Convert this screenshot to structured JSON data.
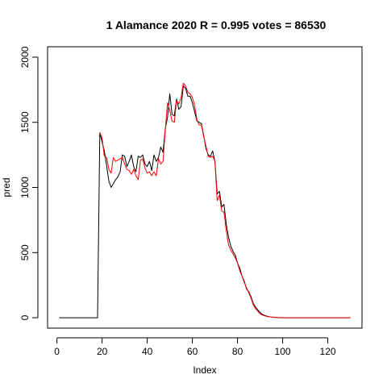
{
  "chart_data": {
    "type": "line",
    "title": "1 Alamance 2020 R = 0.995 votes = 86530",
    "xlabel": "Index",
    "ylabel": "pred",
    "xlim": [
      0,
      130
    ],
    "ylim": [
      0,
      2000
    ],
    "x_ticks": [
      0,
      20,
      40,
      60,
      80,
      100,
      120
    ],
    "y_ticks": [
      0,
      500,
      1000,
      1500,
      2000
    ],
    "x_tick_labels": [
      "0",
      "20",
      "40",
      "60",
      "80",
      "100",
      "120"
    ],
    "y_tick_labels": [
      "0",
      "500",
      "1000",
      "1500",
      "2000"
    ],
    "series": [
      {
        "color": "#000000",
        "x": [
          1,
          2,
          3,
          4,
          5,
          6,
          7,
          8,
          9,
          10,
          11,
          12,
          13,
          14,
          15,
          16,
          17,
          18,
          19,
          20,
          21,
          22,
          23,
          24,
          25,
          26,
          27,
          28,
          29,
          30,
          31,
          32,
          33,
          34,
          35,
          36,
          37,
          38,
          39,
          40,
          41,
          42,
          43,
          44,
          45,
          46,
          47,
          48,
          49,
          50,
          51,
          52,
          53,
          54,
          55,
          56,
          57,
          58,
          59,
          60,
          61,
          62,
          63,
          64,
          65,
          66,
          67,
          68,
          69,
          70,
          71,
          72,
          73,
          74,
          75,
          76,
          77,
          78,
          79,
          80,
          81,
          82,
          83,
          84,
          85,
          86,
          87,
          88,
          89,
          90,
          91,
          92,
          93,
          94,
          95,
          96,
          97,
          98,
          99,
          100,
          101,
          102,
          103,
          104,
          105,
          106,
          107,
          108,
          109,
          110,
          111,
          112,
          113,
          114,
          115,
          116,
          117,
          118,
          119,
          120,
          121,
          122,
          123,
          124,
          125,
          126,
          127,
          128,
          129,
          130
        ],
        "values": [
          0,
          0,
          0,
          0,
          0,
          0,
          0,
          0,
          0,
          0,
          0,
          0,
          0,
          0,
          0,
          0,
          0,
          0,
          1420,
          1350,
          1280,
          1170,
          1050,
          1000,
          1030,
          1060,
          1080,
          1120,
          1250,
          1240,
          1160,
          1200,
          1250,
          1160,
          1120,
          1240,
          1230,
          1250,
          1180,
          1160,
          1200,
          1130,
          1250,
          1200,
          1230,
          1310,
          1270,
          1450,
          1540,
          1720,
          1560,
          1550,
          1680,
          1600,
          1620,
          1780,
          1760,
          1700,
          1700,
          1650,
          1580,
          1510,
          1500,
          1490,
          1400,
          1300,
          1250,
          1240,
          1280,
          1200,
          950,
          970,
          850,
          870,
          720,
          620,
          550,
          510,
          480,
          420,
          380,
          320,
          280,
          220,
          200,
          160,
          110,
          80,
          60,
          40,
          25,
          18,
          12,
          8,
          5,
          3,
          2,
          1,
          0,
          0,
          0,
          0,
          0,
          0,
          0,
          0,
          0,
          0,
          0,
          0,
          0,
          0,
          0,
          0,
          0,
          0,
          0,
          0,
          0,
          0,
          0,
          0,
          0,
          0,
          0,
          0,
          0,
          0,
          0,
          0
        ]
      },
      {
        "color": "#ff0000",
        "x": [
          19,
          20,
          21,
          22,
          23,
          24,
          25,
          26,
          27,
          28,
          29,
          30,
          31,
          32,
          33,
          34,
          35,
          36,
          37,
          38,
          39,
          40,
          41,
          42,
          43,
          44,
          45,
          46,
          47,
          48,
          49,
          50,
          51,
          52,
          53,
          54,
          55,
          56,
          57,
          58,
          59,
          60,
          61,
          62,
          63,
          64,
          65,
          66,
          67,
          68,
          69,
          70,
          71,
          72,
          73,
          74,
          75,
          76,
          77,
          78,
          79,
          80,
          81,
          82,
          83,
          84,
          85,
          86,
          87,
          88,
          89,
          90,
          91,
          92,
          93,
          94,
          95,
          96,
          97,
          98,
          99,
          100,
          101,
          102,
          103,
          104,
          105,
          106,
          107,
          108,
          109,
          110,
          111,
          112,
          113,
          114,
          115,
          116,
          117,
          118,
          119,
          120,
          121,
          122,
          123,
          124,
          125,
          126,
          127,
          128,
          129,
          130
        ],
        "values": [
          1420,
          1380,
          1240,
          1230,
          1140,
          1110,
          1230,
          1200,
          1210,
          1220,
          1230,
          1180,
          1140,
          1130,
          1100,
          1140,
          1090,
          1060,
          1210,
          1220,
          1150,
          1110,
          1120,
          1090,
          1120,
          1090,
          1220,
          1180,
          1200,
          1440,
          1650,
          1590,
          1510,
          1500,
          1670,
          1640,
          1690,
          1800,
          1780,
          1730,
          1720,
          1690,
          1630,
          1520,
          1480,
          1480,
          1390,
          1320,
          1240,
          1230,
          1240,
          1200,
          900,
          940,
          820,
          810,
          670,
          560,
          520,
          490,
          460,
          420,
          360,
          320,
          270,
          230,
          190,
          150,
          100,
          70,
          50,
          30,
          20,
          15,
          10,
          7,
          5,
          4,
          3,
          2,
          1,
          1,
          0,
          0,
          0,
          0,
          0,
          0,
          0,
          0,
          0,
          0,
          0,
          0,
          0,
          0,
          0,
          0,
          0,
          0,
          0,
          0,
          0,
          0,
          0,
          0,
          0,
          0,
          0,
          0,
          0,
          0
        ]
      }
    ]
  }
}
